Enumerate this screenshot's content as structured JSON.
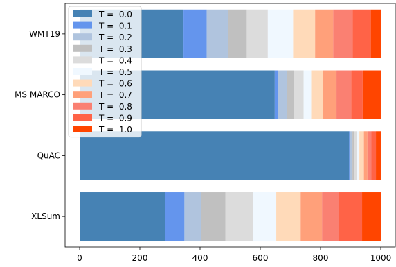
{
  "chart_data": {
    "type": "bar",
    "orientation": "horizontal",
    "stacked": true,
    "categories": [
      "WMT19",
      "MS MARCO",
      "QuAC",
      "XLSum"
    ],
    "xlim": [
      0,
      1000
    ],
    "xticks": [
      "0",
      "200",
      "400",
      "600",
      "800",
      "1000"
    ],
    "grid": false,
    "legend_position": "top-left",
    "series": [
      {
        "name": "T =  0.0",
        "color": "#4682B4",
        "values": [
          345,
          648,
          895,
          283
        ]
      },
      {
        "name": "T =  0.1",
        "color": "#6495ED",
        "values": [
          77,
          10,
          3,
          65
        ]
      },
      {
        "name": "T =  0.2",
        "color": "#B0C4DE",
        "values": [
          72,
          30,
          8,
          55
        ]
      },
      {
        "name": "T =  0.3",
        "color": "#C0C0C0",
        "values": [
          61,
          23,
          6,
          81
        ]
      },
      {
        "name": "T =  0.4",
        "color": "#DCDCDC",
        "values": [
          70,
          33,
          8,
          92
        ]
      },
      {
        "name": "T =  0.5",
        "color": "#F0F8FF",
        "values": [
          84,
          25,
          9,
          77
        ]
      },
      {
        "name": "T =  0.6",
        "color": "#FFDAB9",
        "values": [
          73,
          40,
          15,
          81
        ]
      },
      {
        "name": "T =  0.7",
        "color": "#FFA07A",
        "values": [
          60,
          44,
          12,
          71
        ]
      },
      {
        "name": "T =  0.8",
        "color": "#FA8072",
        "values": [
          65,
          49,
          13,
          57
        ]
      },
      {
        "name": "T =  0.9",
        "color": "#FF6347",
        "values": [
          60,
          38,
          15,
          76
        ]
      },
      {
        "name": "T =  1.0",
        "color": "#FF4500",
        "values": [
          33,
          60,
          16,
          62
        ]
      }
    ]
  }
}
